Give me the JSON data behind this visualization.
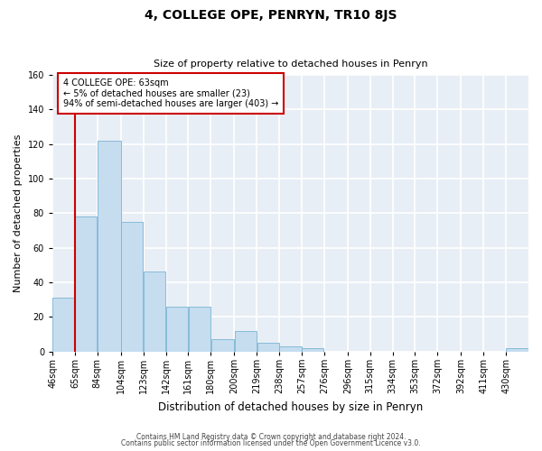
{
  "title": "4, COLLEGE OPE, PENRYN, TR10 8JS",
  "subtitle": "Size of property relative to detached houses in Penryn",
  "xlabel": "Distribution of detached houses by size in Penryn",
  "ylabel": "Number of detached properties",
  "footer_line1": "Contains HM Land Registry data © Crown copyright and database right 2024.",
  "footer_line2": "Contains public sector information licensed under the Open Government Licence v3.0.",
  "bar_values": [
    31,
    78,
    122,
    75,
    46,
    26,
    26,
    7,
    12,
    5,
    3,
    2,
    0,
    0,
    0,
    0,
    0,
    0,
    0,
    0,
    2
  ],
  "bin_edges": [
    46,
    65,
    84,
    104,
    123,
    142,
    161,
    180,
    200,
    219,
    238,
    257,
    276,
    296,
    315,
    334,
    353,
    372,
    392,
    411,
    430
  ],
  "xtick_labels": [
    "46sqm",
    "65sqm",
    "84sqm",
    "104sqm",
    "123sqm",
    "142sqm",
    "161sqm",
    "180sqm",
    "200sqm",
    "219sqm",
    "238sqm",
    "257sqm",
    "276sqm",
    "296sqm",
    "315sqm",
    "334sqm",
    "353sqm",
    "372sqm",
    "392sqm",
    "411sqm",
    "430sqm"
  ],
  "bar_color": "#c5ddef",
  "bar_edge_color": "#7ab4d4",
  "red_line_color": "#cc0000",
  "annotation_title": "4 COLLEGE OPE: 63sqm",
  "annotation_line1": "← 5% of detached houses are smaller (23)",
  "annotation_line2": "94% of semi-detached houses are larger (403) →",
  "annotation_box_facecolor": "#ffffff",
  "annotation_box_edgecolor": "#cc0000",
  "ylim": [
    0,
    160
  ],
  "yticks": [
    0,
    20,
    40,
    60,
    80,
    100,
    120,
    140,
    160
  ],
  "background_color": "#ffffff",
  "plot_bg_color": "#e8eef5",
  "grid_color": "#ffffff",
  "title_fontsize": 10,
  "subtitle_fontsize": 8,
  "label_fontsize": 8,
  "tick_fontsize": 7,
  "footer_fontsize": 5.5
}
